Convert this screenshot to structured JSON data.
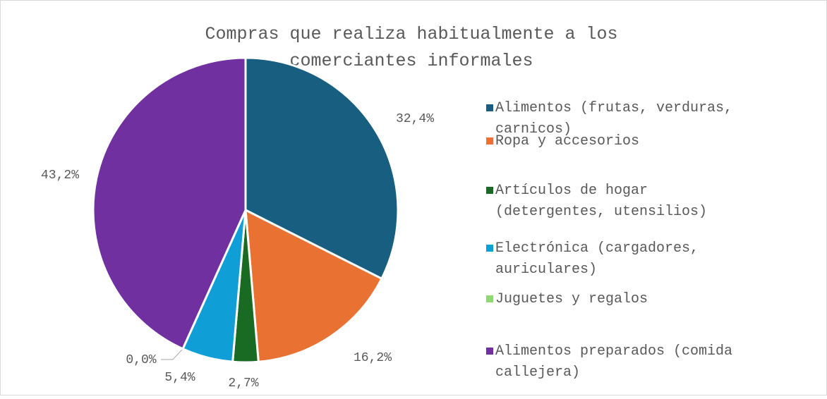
{
  "chart_data": {
    "type": "pie",
    "title": "Compras que realiza habitualmente a los comerciantes informales",
    "categories": [
      "Alimentos (frutas, verduras, carnicos)",
      "Ropa y accesorios",
      "Artículos de hogar (detergentes, utensilios)",
      "Electrónica (cargadores, auriculares)",
      "Juguetes y regalos",
      "Alimentos preparados (comida callejera)"
    ],
    "values": [
      32.4,
      16.2,
      2.7,
      5.4,
      0.0,
      43.2
    ],
    "value_labels": [
      "32,4%",
      "16,2%",
      "2,7%",
      "5,4%",
      "0,0%",
      "43,2%"
    ],
    "colors": [
      "#175e80",
      "#e97132",
      "#196b24",
      "#0f9ed5",
      "#8ed973",
      "#7030a0"
    ],
    "legend": "right"
  }
}
